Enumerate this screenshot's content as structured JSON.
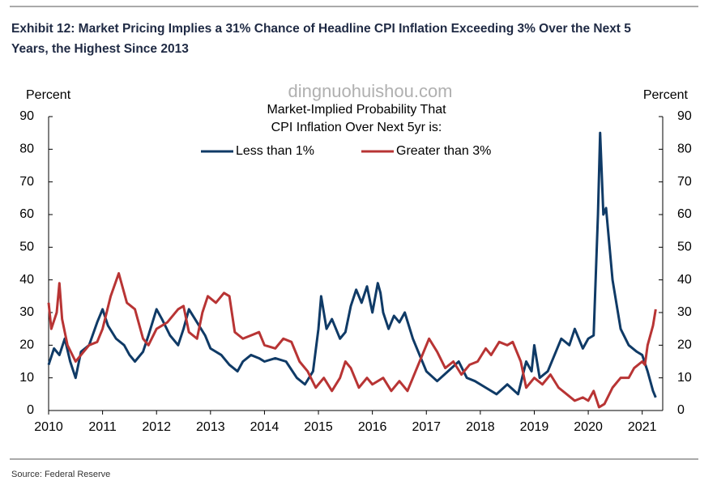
{
  "chart_data": {
    "type": "line",
    "title_lines": [
      "Exhibit 12: Market Pricing Implies a 31% Chance of Headline CPI Inflation Exceeding 3% Over the Next 5",
      "Years, the Highest Since 2013"
    ],
    "watermark": "dingnuohuishou.com",
    "ylabel": "Percent",
    "y2label": "Percent",
    "legend_title": [
      "Market-Implied Probability That",
      "CPI Inflation Over Next 5yr is:"
    ],
    "source": "Source: Federal Reserve",
    "xlim": [
      2010,
      2021.38
    ],
    "xticks": [
      2010,
      2011,
      2012,
      2013,
      2014,
      2015,
      2016,
      2017,
      2018,
      2019,
      2020,
      2021
    ],
    "ylim": [
      0,
      90
    ],
    "yticks": [
      0,
      10,
      20,
      30,
      40,
      50,
      60,
      70,
      80,
      90
    ],
    "y2lim": [
      0,
      90
    ],
    "y2ticks": [
      0,
      10,
      20,
      30,
      40,
      50,
      60,
      70,
      80,
      90
    ],
    "legend": "top",
    "series": [
      {
        "name": "Less than 1%",
        "color": "#0f3a66",
        "x": [
          2010.0,
          2010.1,
          2010.2,
          2010.3,
          2010.4,
          2010.5,
          2010.6,
          2010.75,
          2010.9,
          2011.0,
          2011.1,
          2011.25,
          2011.4,
          2011.5,
          2011.6,
          2011.75,
          2011.85,
          2012.0,
          2012.1,
          2012.25,
          2012.4,
          2012.5,
          2012.6,
          2012.75,
          2012.9,
          2013.0,
          2013.2,
          2013.35,
          2013.5,
          2013.6,
          2013.75,
          2013.9,
          2014.0,
          2014.2,
          2014.4,
          2014.6,
          2014.75,
          2014.9,
          2015.0,
          2015.05,
          2015.15,
          2015.25,
          2015.4,
          2015.5,
          2015.6,
          2015.7,
          2015.8,
          2015.9,
          2016.0,
          2016.1,
          2016.15,
          2016.2,
          2016.3,
          2016.4,
          2016.5,
          2016.6,
          2016.75,
          2016.85,
          2017.0,
          2017.2,
          2017.4,
          2017.6,
          2017.75,
          2017.9,
          2018.1,
          2018.3,
          2018.5,
          2018.7,
          2018.85,
          2018.95,
          2019.0,
          2019.1,
          2019.25,
          2019.4,
          2019.5,
          2019.65,
          2019.75,
          2019.9,
          2020.0,
          2020.1,
          2020.18,
          2020.22,
          2020.28,
          2020.33,
          2020.45,
          2020.6,
          2020.75,
          2020.9,
          2021.0,
          2021.1,
          2021.2,
          2021.25
        ],
        "values": [
          14,
          19,
          17,
          22,
          15,
          10,
          18,
          20,
          27,
          31,
          26,
          22,
          20,
          17,
          15,
          18,
          23,
          31,
          28,
          23,
          20,
          25,
          31,
          27,
          23,
          19,
          17,
          14,
          12,
          15,
          17,
          16,
          15,
          16,
          15,
          10,
          8,
          12,
          25,
          35,
          25,
          28,
          22,
          24,
          32,
          37,
          33,
          38,
          30,
          39,
          36,
          30,
          25,
          29,
          27,
          30,
          22,
          18,
          12,
          9,
          12,
          15,
          10,
          9,
          7,
          5,
          8,
          5,
          15,
          12,
          20,
          10,
          12,
          18,
          22,
          20,
          25,
          19,
          22,
          23,
          60,
          85,
          60,
          62,
          40,
          25,
          20,
          18,
          17,
          12,
          6,
          4
        ]
      },
      {
        "name": "Greater than 3%",
        "color": "#b83434",
        "x": [
          2010.0,
          2010.05,
          2010.15,
          2010.2,
          2010.25,
          2010.35,
          2010.5,
          2010.6,
          2010.75,
          2010.9,
          2011.0,
          2011.15,
          2011.3,
          2011.45,
          2011.6,
          2011.75,
          2011.85,
          2012.0,
          2012.2,
          2012.4,
          2012.5,
          2012.6,
          2012.75,
          2012.85,
          2012.95,
          2013.1,
          2013.25,
          2013.35,
          2013.45,
          2013.6,
          2013.75,
          2013.9,
          2014.0,
          2014.2,
          2014.35,
          2014.5,
          2014.65,
          2014.8,
          2014.95,
          2015.1,
          2015.25,
          2015.4,
          2015.5,
          2015.6,
          2015.75,
          2015.9,
          2016.0,
          2016.2,
          2016.35,
          2016.5,
          2016.65,
          2016.8,
          2016.95,
          2017.05,
          2017.2,
          2017.35,
          2017.5,
          2017.65,
          2017.8,
          2017.95,
          2018.1,
          2018.2,
          2018.35,
          2018.5,
          2018.6,
          2018.75,
          2018.85,
          2019.0,
          2019.15,
          2019.3,
          2019.45,
          2019.6,
          2019.75,
          2019.9,
          2020.0,
          2020.1,
          2020.2,
          2020.3,
          2020.45,
          2020.6,
          2020.75,
          2020.85,
          2021.0,
          2021.05,
          2021.1,
          2021.15,
          2021.2,
          2021.25
        ],
        "values": [
          33,
          25,
          30,
          39,
          28,
          20,
          15,
          17,
          20,
          21,
          25,
          35,
          42,
          33,
          31,
          22,
          20,
          25,
          27,
          31,
          32,
          24,
          22,
          30,
          35,
          33,
          36,
          35,
          24,
          22,
          23,
          24,
          20,
          19,
          22,
          21,
          15,
          12,
          7,
          10,
          6,
          10,
          15,
          13,
          7,
          10,
          8,
          10,
          6,
          9,
          6,
          12,
          18,
          22,
          18,
          13,
          15,
          11,
          14,
          15,
          19,
          17,
          21,
          20,
          21,
          15,
          7,
          10,
          8,
          11,
          7,
          5,
          3,
          4,
          3,
          6,
          1,
          2,
          7,
          10,
          10,
          13,
          15,
          14,
          20,
          23,
          26,
          31
        ]
      }
    ]
  }
}
